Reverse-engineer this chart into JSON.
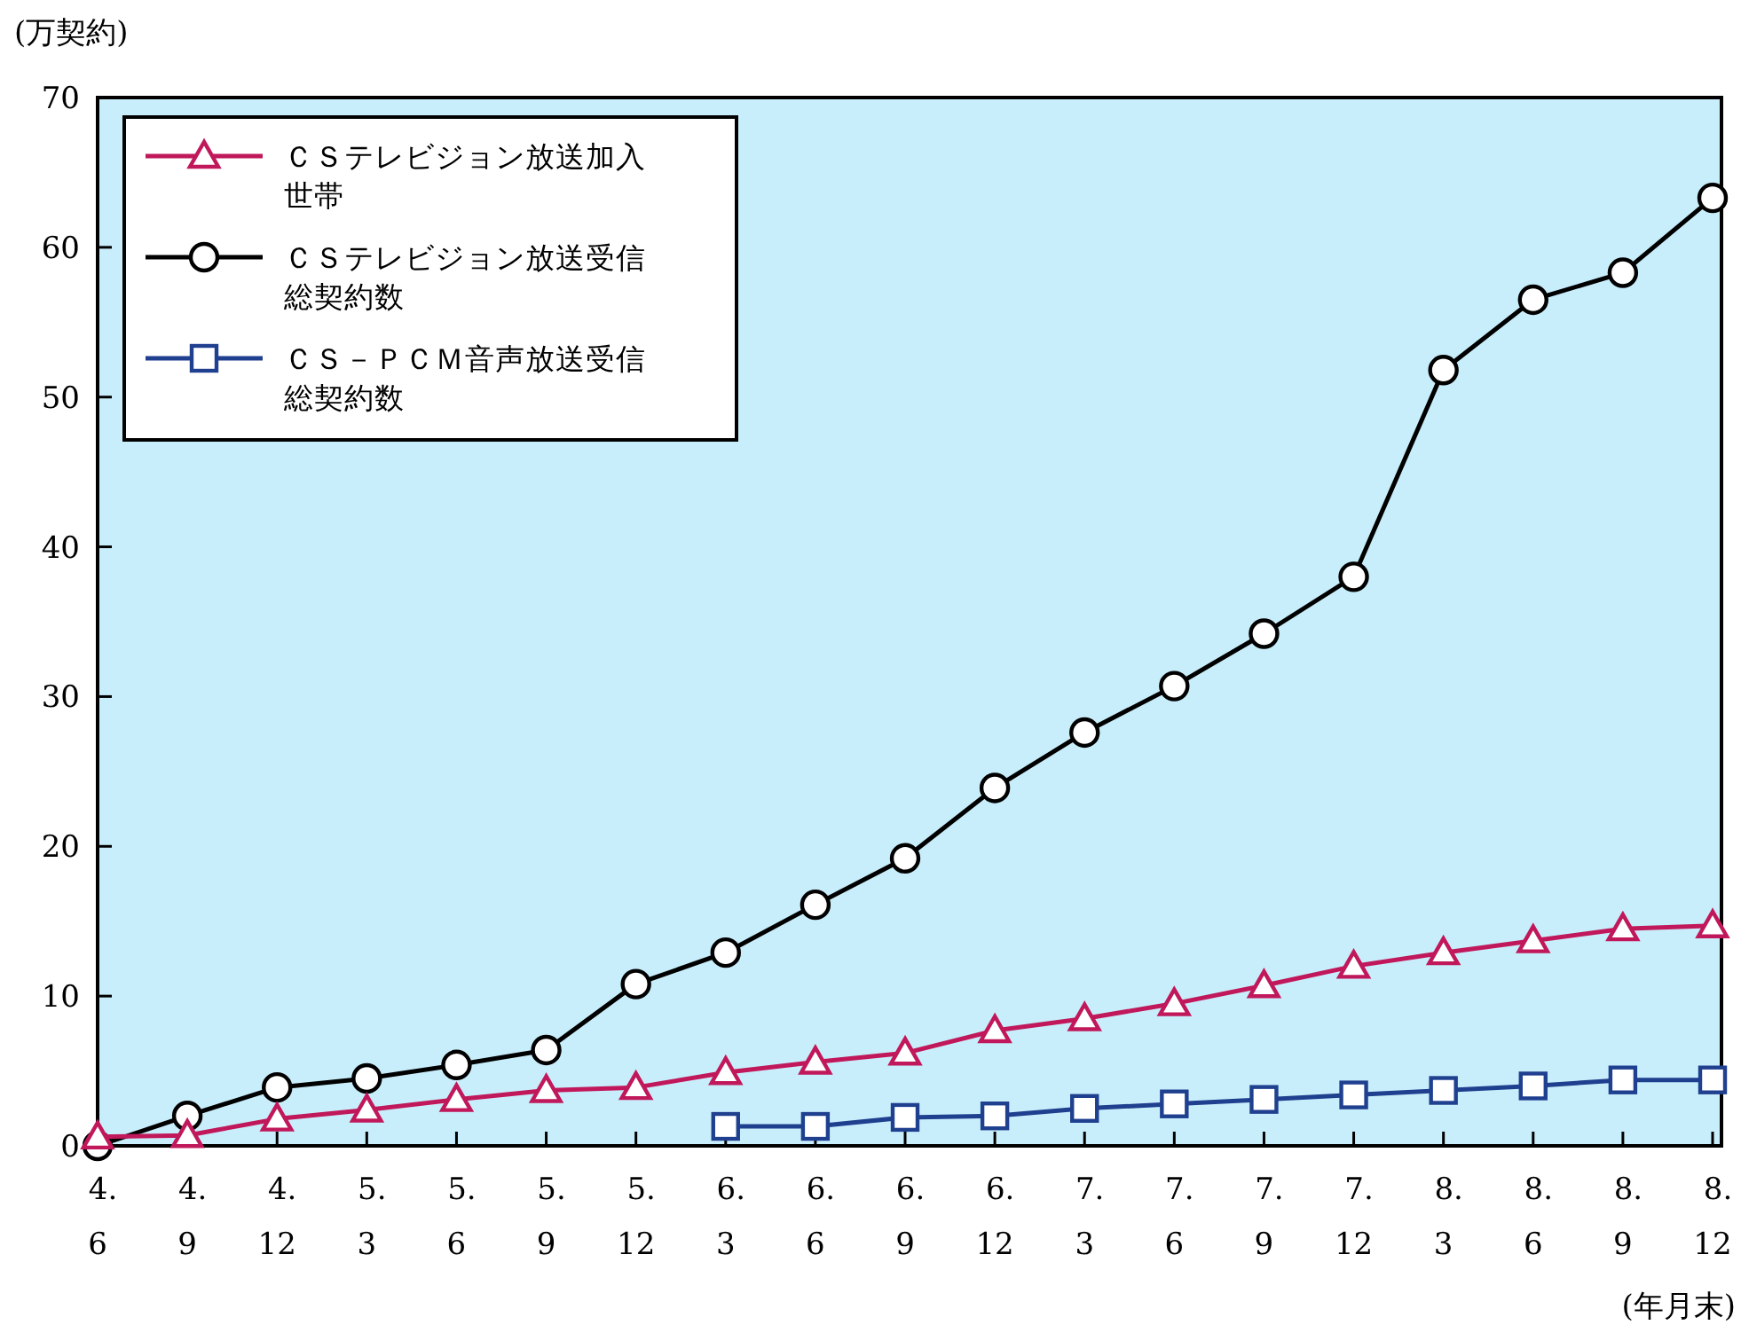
{
  "chart_data": {
    "type": "line",
    "ylabel": "(万契約)",
    "xlabel": "(年月末)",
    "categories": [
      "4.\n6",
      "4.\n9",
      "4.\n12",
      "5.\n3",
      "5.\n6",
      "5.\n9",
      "5.\n12",
      "6.\n3",
      "6.\n6",
      "6.\n9",
      "6.\n12",
      "7.\n3",
      "7.\n6",
      "7.\n9",
      "7.\n12",
      "8.\n3",
      "8.\n6",
      "8.\n9",
      "8.\n12"
    ],
    "series": [
      {
        "name": "ＣＳテレビジョン放送加入世帯",
        "color": "#c0185a",
        "marker": "triangle",
        "values": [
          0.6,
          0.7,
          1.8,
          2.4,
          3.1,
          3.7,
          3.9,
          4.9,
          5.6,
          6.2,
          7.7,
          8.5,
          9.5,
          10.7,
          12.0,
          12.9,
          13.7,
          14.5,
          14.7
        ]
      },
      {
        "name": "ＣＳテレビジョン放送受信総契約数",
        "color": "#000000",
        "marker": "circle",
        "values": [
          0,
          2.0,
          3.9,
          4.5,
          5.4,
          6.4,
          10.8,
          12.9,
          16.1,
          19.2,
          23.9,
          27.6,
          30.7,
          34.2,
          38.0,
          51.8,
          56.5,
          58.3,
          63.3
        ]
      },
      {
        "name": "ＣＳ－ＰＣＭ音声放送受信総契約数",
        "color": "#1f3f8f",
        "marker": "square",
        "values": [
          null,
          null,
          null,
          null,
          null,
          null,
          null,
          1.3,
          1.3,
          1.9,
          2.0,
          2.5,
          2.8,
          3.1,
          3.4,
          3.7,
          4.0,
          4.4,
          4.4
        ]
      }
    ],
    "ylim": [
      0,
      70
    ],
    "yticks": [
      0,
      10,
      20,
      30,
      40,
      50,
      60,
      70
    ],
    "legend": "top left",
    "grid": false
  }
}
